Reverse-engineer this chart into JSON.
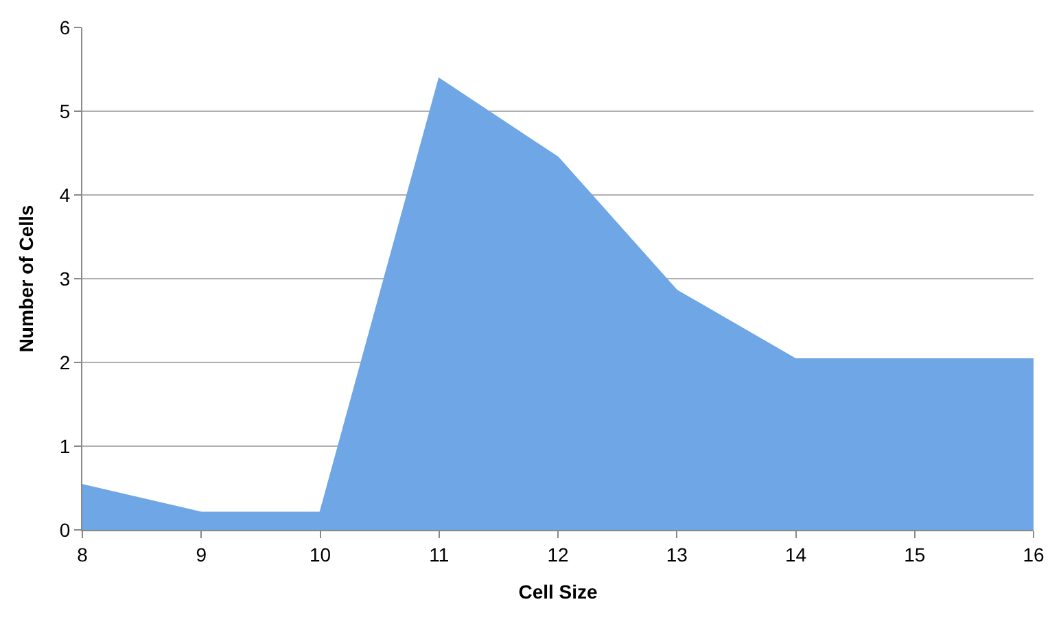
{
  "chart_data": {
    "type": "area",
    "xlabel": "Cell Size",
    "ylabel": "Number of Cells",
    "x": [
      8,
      9,
      10,
      11,
      12,
      13,
      14,
      15,
      16
    ],
    "series": [
      {
        "color": "#6fa6e6",
        "values": [
          0.54,
          0.21,
          0.21,
          5.39,
          4.45,
          2.86,
          2.04,
          2.04,
          2.04
        ]
      }
    ],
    "xlim": [
      8,
      16
    ],
    "xticks": [
      8,
      9,
      10,
      11,
      12,
      13,
      14,
      15,
      16
    ],
    "ylim": [
      0,
      6
    ],
    "yticks": [
      0,
      1,
      2,
      3,
      4,
      5,
      6
    ],
    "grid": "y"
  }
}
